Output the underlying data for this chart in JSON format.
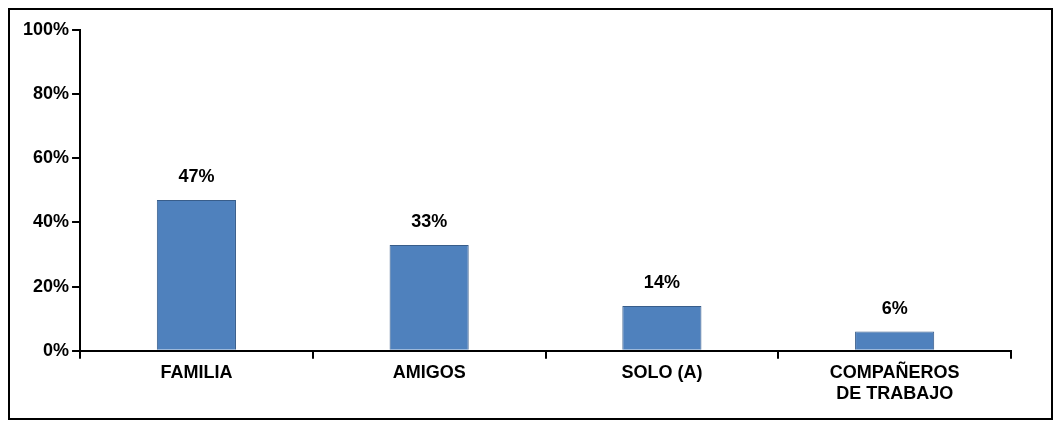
{
  "chart_data": {
    "type": "bar",
    "categories": [
      "FAMILIA",
      "AMIGOS",
      "SOLO (A)",
      "COMPAÑEROS DE TRABAJO"
    ],
    "values": [
      47,
      33,
      14,
      6
    ],
    "value_labels": [
      "47%",
      "33%",
      "14%",
      "6%"
    ],
    "color": "#4f81bd",
    "ylim": [
      0,
      100
    ],
    "yticks": [
      {
        "value": 0,
        "label": "0%"
      },
      {
        "value": 20,
        "label": "20%"
      },
      {
        "value": 40,
        "label": "40%"
      },
      {
        "value": 60,
        "label": "60%"
      },
      {
        "value": 80,
        "label": "80%"
      },
      {
        "value": 100,
        "label": "100%"
      }
    ],
    "grid": false,
    "legend": false
  }
}
